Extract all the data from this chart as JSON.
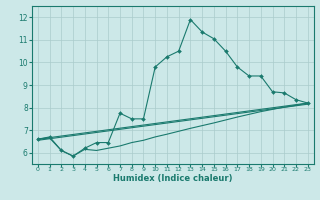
{
  "xlabel": "Humidex (Indice chaleur)",
  "bg_color": "#cce8e8",
  "grid_color": "#aacccc",
  "line_color": "#1a7a6e",
  "xlim": [
    -0.5,
    23.5
  ],
  "ylim": [
    5.5,
    12.5
  ],
  "xticks": [
    0,
    1,
    2,
    3,
    4,
    5,
    6,
    7,
    8,
    9,
    10,
    11,
    12,
    13,
    14,
    15,
    16,
    17,
    18,
    19,
    20,
    21,
    22,
    23
  ],
  "yticks": [
    6,
    7,
    8,
    9,
    10,
    11,
    12
  ],
  "line1_x": [
    0,
    1,
    2,
    3,
    4,
    5,
    6,
    7,
    8,
    9,
    10,
    11,
    12,
    13,
    14,
    15,
    16,
    17,
    18,
    19,
    20,
    21,
    22,
    23
  ],
  "line1_y": [
    6.6,
    6.7,
    6.1,
    5.85,
    6.2,
    6.45,
    6.45,
    7.75,
    7.5,
    7.5,
    9.8,
    10.25,
    10.5,
    11.9,
    11.35,
    11.05,
    10.5,
    9.8,
    9.4,
    9.4,
    8.7,
    8.65,
    8.35,
    8.2
  ],
  "line2_x": [
    0,
    1,
    2,
    3,
    4,
    5,
    6,
    7,
    8,
    9,
    10,
    11,
    12,
    13,
    14,
    15,
    16,
    17,
    18,
    19,
    20,
    21,
    22,
    23
  ],
  "line2_y": [
    6.6,
    6.65,
    6.1,
    5.85,
    6.15,
    6.1,
    6.2,
    6.3,
    6.45,
    6.55,
    6.7,
    6.82,
    6.95,
    7.08,
    7.2,
    7.32,
    7.45,
    7.58,
    7.7,
    7.82,
    7.92,
    8.02,
    8.1,
    8.2
  ],
  "line3_x": [
    0,
    23
  ],
  "line3_y": [
    6.6,
    8.2
  ],
  "line4_x": [
    0,
    23
  ],
  "line4_y": [
    6.55,
    8.15
  ]
}
